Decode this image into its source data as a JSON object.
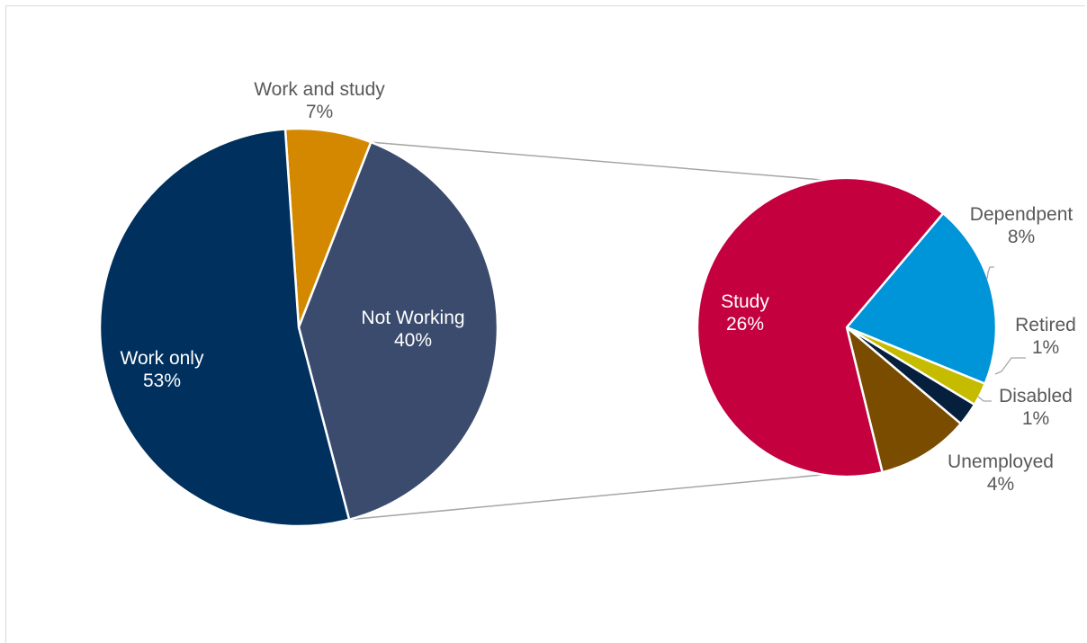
{
  "chart_data": {
    "type": "pie",
    "subtype": "pie-of-pie",
    "primary": {
      "slices": [
        {
          "label": "Work and study",
          "value_label": "7%",
          "value": 7,
          "color": "#d48800"
        },
        {
          "label": "Not Working",
          "value_label": "40%",
          "value": 40,
          "color": "#3a4b6e"
        },
        {
          "label": "Work only",
          "value_label": "53%",
          "value": 53,
          "color": "#00305e"
        }
      ]
    },
    "secondary": {
      "parent": "Not Working",
      "slices": [
        {
          "label": "Dependpent",
          "value_label": "8%",
          "value": 8,
          "color": "#0094d8"
        },
        {
          "label": "Retired",
          "value_label": "1%",
          "value": 1,
          "color": "#c5bc00"
        },
        {
          "label": "Disabled",
          "value_label": "1%",
          "value": 1,
          "color": "#061f3c"
        },
        {
          "label": "Unemployed",
          "value_label": "4%",
          "value": 4,
          "color": "#7a4c00"
        },
        {
          "label": "Study",
          "value_label": "26%",
          "value": 26,
          "color": "#c4003f"
        }
      ]
    },
    "connector_color": "#a6a6a6",
    "label_colors": {
      "inside": "#ffffff",
      "outside": "#595959"
    }
  }
}
